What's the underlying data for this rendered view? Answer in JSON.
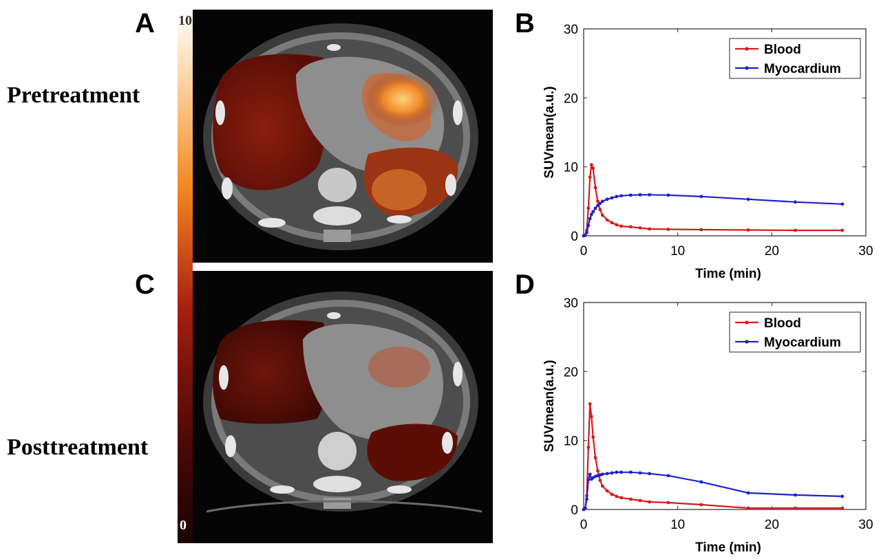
{
  "panels": {
    "a": "A",
    "b": "B",
    "c": "C",
    "d": "D"
  },
  "rows": {
    "pre": "Pretreatment",
    "post": "Posttreatment"
  },
  "colorbar": {
    "max_label": "10",
    "min_label": "0"
  },
  "chart_data": [
    {
      "type": "line",
      "panel": "B",
      "xlabel": "Time (min)",
      "ylabel": "SUVmean(a.u.)",
      "xlim": [
        0,
        30
      ],
      "ylim": [
        0,
        30
      ],
      "xticks": [
        "0",
        "10",
        "20",
        "30"
      ],
      "yticks": [
        "0",
        "10",
        "20",
        "30"
      ],
      "legend_position": "top-right",
      "series": [
        {
          "name": "Blood",
          "color": "#d7191c",
          "x": [
            0,
            0.17,
            0.33,
            0.5,
            0.67,
            0.83,
            1.0,
            1.25,
            1.5,
            1.75,
            2.0,
            2.5,
            3.0,
            3.5,
            4.0,
            5.0,
            6.0,
            7.0,
            9.0,
            12.5,
            17.5,
            22.5,
            27.5
          ],
          "y": [
            0,
            0.1,
            0.8,
            4.0,
            8.5,
            10.3,
            9.8,
            7.0,
            5.0,
            3.8,
            3.0,
            2.3,
            1.9,
            1.6,
            1.4,
            1.3,
            1.15,
            1.0,
            0.95,
            0.9,
            0.85,
            0.8,
            0.8
          ]
        },
        {
          "name": "Myocardium",
          "color": "#1f1fc8",
          "x": [
            0,
            0.17,
            0.33,
            0.5,
            0.67,
            0.83,
            1.0,
            1.25,
            1.5,
            1.75,
            2.0,
            2.5,
            3.0,
            3.5,
            4.0,
            5.0,
            6.0,
            7.0,
            9.0,
            12.5,
            17.5,
            22.5,
            27.5
          ],
          "y": [
            0,
            0.1,
            0.5,
            1.5,
            2.5,
            3.1,
            3.5,
            4.0,
            4.4,
            4.7,
            5.0,
            5.3,
            5.5,
            5.7,
            5.8,
            5.9,
            5.95,
            5.95,
            5.9,
            5.7,
            5.3,
            4.9,
            4.6
          ]
        }
      ]
    },
    {
      "type": "line",
      "panel": "D",
      "xlabel": "Time (min)",
      "ylabel": "SUVmean(a.u.)",
      "xlim": [
        0,
        30
      ],
      "ylim": [
        0,
        30
      ],
      "xticks": [
        "0",
        "10",
        "20",
        "30"
      ],
      "yticks": [
        "0",
        "10",
        "20",
        "30"
      ],
      "legend_position": "top-right",
      "series": [
        {
          "name": "Blood",
          "color": "#d7191c",
          "x": [
            0,
            0.17,
            0.33,
            0.5,
            0.67,
            0.83,
            1.0,
            1.25,
            1.5,
            1.75,
            2.0,
            2.5,
            3.0,
            3.5,
            4.0,
            5.0,
            6.0,
            7.0,
            9.0,
            12.5,
            17.5,
            22.5,
            27.5
          ],
          "y": [
            0,
            0.2,
            2.0,
            9.0,
            15.3,
            13.5,
            10.5,
            7.5,
            5.6,
            4.2,
            3.4,
            2.7,
            2.2,
            1.9,
            1.7,
            1.5,
            1.3,
            1.1,
            1.0,
            0.7,
            0.2,
            0.2,
            0.2
          ]
        },
        {
          "name": "Myocardium",
          "color": "#1f1fc8",
          "x": [
            0,
            0.17,
            0.33,
            0.5,
            0.67,
            0.83,
            1.0,
            1.25,
            1.5,
            1.75,
            2.0,
            2.5,
            3.0,
            3.5,
            4.0,
            5.0,
            6.0,
            7.0,
            9.0,
            12.5,
            17.5,
            22.5,
            27.5
          ],
          "y": [
            0,
            0.2,
            1.5,
            4.3,
            5.1,
            4.4,
            4.6,
            4.8,
            4.9,
            5.0,
            5.1,
            5.2,
            5.3,
            5.4,
            5.4,
            5.4,
            5.3,
            5.2,
            4.9,
            4.0,
            2.4,
            2.1,
            1.9
          ]
        }
      ]
    }
  ]
}
